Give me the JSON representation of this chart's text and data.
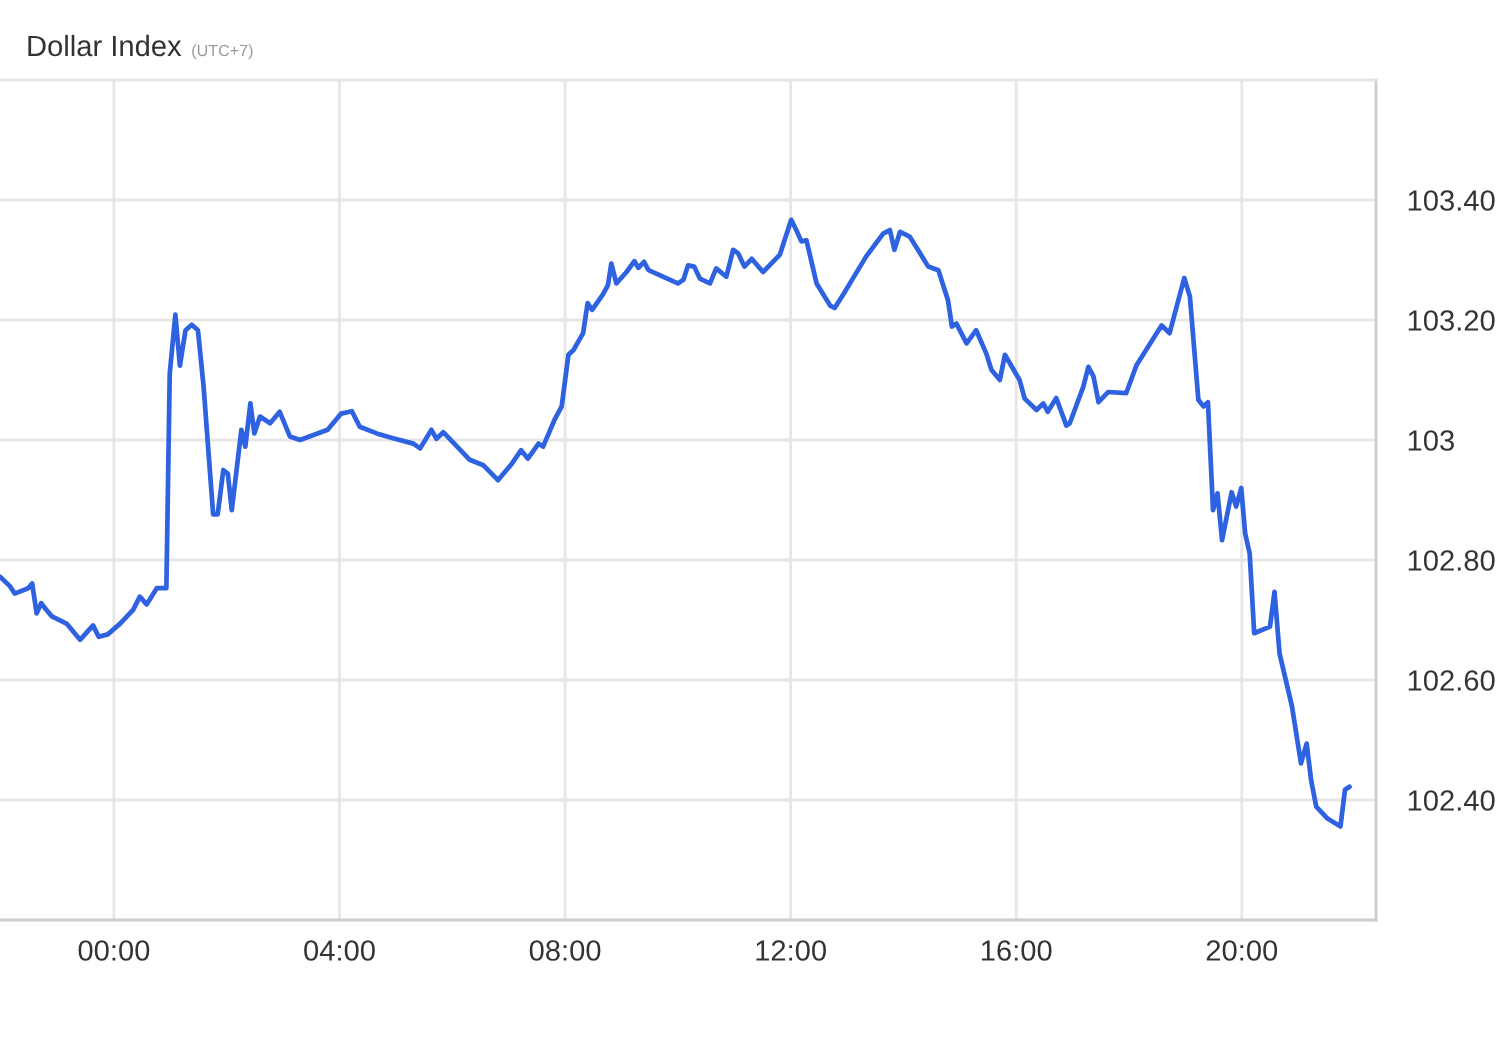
{
  "chart_data": {
    "type": "line",
    "title": "Dollar Index",
    "subtitle": "(UTC+7)",
    "x": [
      -2.02,
      -1.84,
      -1.76,
      -1.52,
      -1.45,
      -1.37,
      -1.29,
      -1.2,
      -1.1,
      -0.84,
      -0.6,
      -0.37,
      -0.27,
      -0.11,
      0.11,
      0.34,
      0.46,
      0.58,
      0.76,
      0.93,
      0.99,
      1.09,
      1.17,
      1.27,
      1.38,
      1.49,
      1.59,
      1.76,
      1.84,
      1.94,
      2.02,
      2.09,
      2.26,
      2.33,
      2.42,
      2.49,
      2.59,
      2.77,
      2.94,
      3.12,
      3.3,
      3.79,
      4.03,
      4.22,
      4.36,
      4.66,
      4.95,
      5.31,
      5.43,
      5.63,
      5.72,
      5.84,
      6.31,
      6.55,
      6.81,
      7.06,
      7.22,
      7.34,
      7.53,
      7.61,
      7.81,
      7.94,
      8.06,
      8.15,
      8.32,
      8.4,
      8.48,
      8.68,
      8.76,
      8.82,
      8.91,
      9.09,
      9.23,
      9.3,
      9.4,
      9.48,
      10.0,
      10.1,
      10.18,
      10.29,
      10.39,
      10.57,
      10.68,
      10.86,
      10.98,
      11.07,
      11.18,
      11.31,
      11.51,
      11.81,
      12.01,
      12.1,
      12.19,
      12.28,
      12.46,
      12.7,
      12.78,
      12.93,
      13.34,
      13.64,
      13.76,
      13.84,
      13.94,
      14.11,
      14.35,
      14.44,
      14.62,
      14.79,
      14.86,
      14.94,
      15.12,
      15.29,
      15.47,
      15.56,
      15.71,
      15.8,
      16.06,
      16.15,
      16.36,
      16.48,
      16.56,
      16.71,
      16.89,
      16.95,
      17.19,
      17.28,
      17.37,
      17.46,
      17.63,
      17.95,
      18.13,
      18.49,
      18.58,
      18.72,
      18.98,
      19.08,
      19.23,
      19.32,
      19.4,
      19.49,
      19.57,
      19.65,
      19.82,
      19.9,
      19.99,
      20.06,
      20.14,
      20.22,
      20.5,
      20.58,
      20.67,
      20.89,
      21.05,
      21.15,
      21.23,
      21.32,
      21.52,
      21.75,
      21.83,
      21.91
    ],
    "series": [
      {
        "color": "#2f62e0",
        "values": [
          102.772,
          102.756,
          102.744,
          102.753,
          102.761,
          102.711,
          102.728,
          102.717,
          102.706,
          102.694,
          102.667,
          102.691,
          102.672,
          102.676,
          102.694,
          102.717,
          102.739,
          102.726,
          102.753,
          102.753,
          103.111,
          103.209,
          103.124,
          103.183,
          103.192,
          103.183,
          103.089,
          102.876,
          102.876,
          102.95,
          102.944,
          102.883,
          103.017,
          102.989,
          103.061,
          103.011,
          103.039,
          103.028,
          103.047,
          103.006,
          103.0,
          103.017,
          103.044,
          103.048,
          103.022,
          103.011,
          103.003,
          102.994,
          102.986,
          103.017,
          103.002,
          103.013,
          102.967,
          102.958,
          102.933,
          102.961,
          102.983,
          102.969,
          102.994,
          102.989,
          103.033,
          103.056,
          103.142,
          103.15,
          103.178,
          103.228,
          103.217,
          103.244,
          103.258,
          103.294,
          103.261,
          103.28,
          103.298,
          103.287,
          103.297,
          103.283,
          103.261,
          103.267,
          103.291,
          103.289,
          103.269,
          103.261,
          103.286,
          103.272,
          103.317,
          103.311,
          103.289,
          103.302,
          103.28,
          103.309,
          103.367,
          103.35,
          103.331,
          103.333,
          103.261,
          103.224,
          103.22,
          103.242,
          103.306,
          103.344,
          103.35,
          103.317,
          103.347,
          103.339,
          103.303,
          103.289,
          103.283,
          103.233,
          103.189,
          103.194,
          103.161,
          103.183,
          103.144,
          103.117,
          103.1,
          103.142,
          103.1,
          103.069,
          103.05,
          103.061,
          103.047,
          103.07,
          103.024,
          103.028,
          103.089,
          103.122,
          103.106,
          103.063,
          103.08,
          103.078,
          103.124,
          103.178,
          103.191,
          103.178,
          103.27,
          103.239,
          103.067,
          103.056,
          103.063,
          102.883,
          102.911,
          102.833,
          102.913,
          102.889,
          102.92,
          102.844,
          102.811,
          102.678,
          102.689,
          102.747,
          102.644,
          102.556,
          102.461,
          102.494,
          102.433,
          102.389,
          102.369,
          102.356,
          102.417,
          102.422
        ]
      }
    ],
    "xlim": [
      -2.02,
      22.38
    ],
    "ylim": [
      102.2,
      103.6
    ],
    "xticks": [
      {
        "value": 0,
        "label": "00:00"
      },
      {
        "value": 4,
        "label": "04:00"
      },
      {
        "value": 8,
        "label": "08:00"
      },
      {
        "value": 12,
        "label": "12:00"
      },
      {
        "value": 16,
        "label": "16:00"
      },
      {
        "value": 20,
        "label": "20:00"
      }
    ],
    "yticks": [
      {
        "value": 102.4,
        "label": "102.40"
      },
      {
        "value": 102.6,
        "label": "102.60"
      },
      {
        "value": 102.8,
        "label": "102.80"
      },
      103,
      {
        "value": 103.2,
        "label": "103.20"
      },
      {
        "value": 103.4,
        "label": "103.40"
      }
    ],
    "grid": true,
    "line_style": "solid"
  }
}
